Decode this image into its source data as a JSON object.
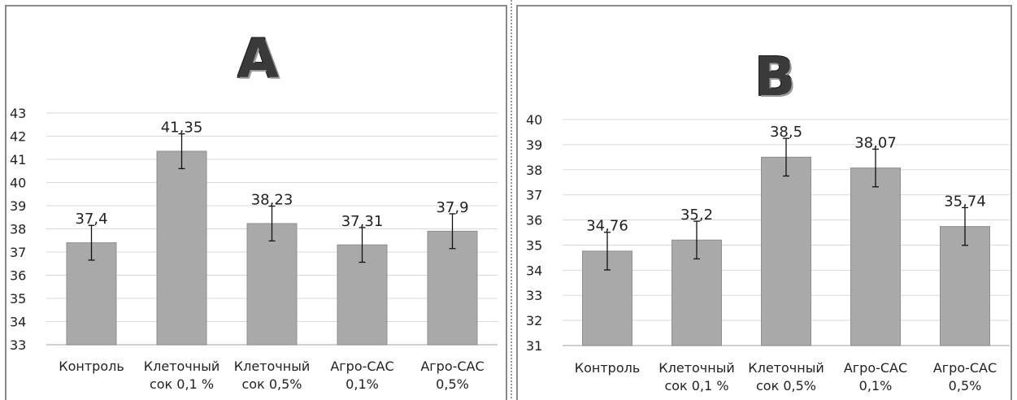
{
  "chart_data": [
    {
      "type": "bar",
      "title": "A",
      "categories": [
        [
          "Контроль"
        ],
        [
          "Клеточный",
          "сок 0,1 %"
        ],
        [
          "Клеточный",
          "сок 0,5%"
        ],
        [
          "Агро-САС",
          "0,1%"
        ],
        [
          "Агро-САС",
          "0,5%"
        ]
      ],
      "values": [
        37.4,
        41.35,
        38.23,
        37.31,
        37.9
      ],
      "value_labels": [
        "37,4",
        "41,35",
        "38,23",
        "37,31",
        "37,9"
      ],
      "error": [
        0.75,
        0.75,
        0.75,
        0.75,
        0.75
      ],
      "ylim": [
        33,
        43
      ],
      "yticks": [
        33,
        34,
        35,
        36,
        37,
        38,
        39,
        40,
        41,
        42,
        43
      ],
      "grid": true,
      "bar_color": "#a9a9a9"
    },
    {
      "type": "bar",
      "title": "B",
      "categories": [
        [
          "Контроль"
        ],
        [
          "Клеточный",
          "сок 0,1 %"
        ],
        [
          "Клеточный",
          "сок 0,5%"
        ],
        [
          "Агро-САС",
          "0,1%"
        ],
        [
          "Агро-САС",
          "0,5%"
        ]
      ],
      "values": [
        34.76,
        35.2,
        38.5,
        38.07,
        35.74
      ],
      "value_labels": [
        "34,76",
        "35,2",
        "38,5",
        "38,07",
        "35,74"
      ],
      "error": [
        0.75,
        0.75,
        0.75,
        0.75,
        0.75
      ],
      "ylim": [
        31,
        40
      ],
      "yticks": [
        31,
        32,
        33,
        34,
        35,
        36,
        37,
        38,
        39,
        40
      ],
      "grid": true,
      "bar_color": "#a9a9a9"
    }
  ]
}
